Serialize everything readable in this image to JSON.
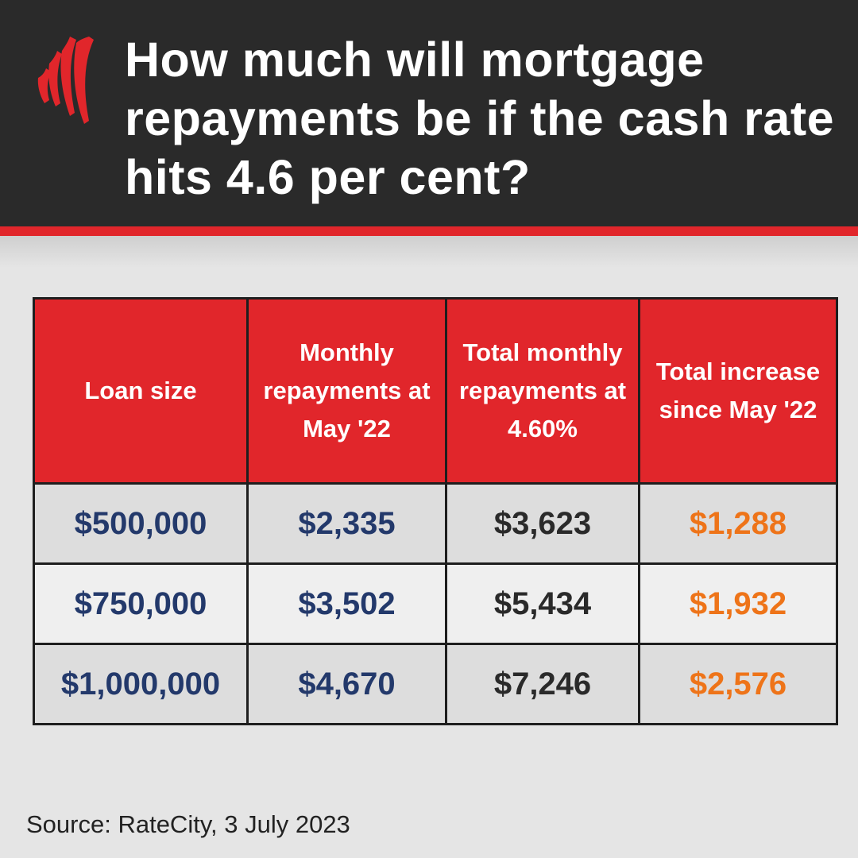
{
  "header": {
    "title": "How much will mortgage repayments be if the cash rate hits 4.6 per cent?",
    "brand_color": "#e1262b",
    "background_color": "#2a2a2a",
    "logo_icon": "sbs-logo-icon"
  },
  "chart_data": {
    "type": "table",
    "columns": [
      "Loan size",
      "Monthly repayments at May '22",
      "Total monthly repayments at 4.60%",
      "Total increase since May '22"
    ],
    "rows": [
      [
        "$500,000",
        "$2,335",
        "$3,623",
        "$1,288"
      ],
      [
        "$750,000",
        "$3,502",
        "$5,434",
        "$1,932"
      ],
      [
        "$1,000,000",
        "$4,670",
        "$7,246",
        "$2,576"
      ]
    ],
    "colors": {
      "header_bg": "#e1262b",
      "loan_and_may22_text": "#23396b",
      "total_text": "#2a2a2a",
      "increase_text": "#ee7419"
    }
  },
  "footer": {
    "source": "Source: RateCity, 3 July 2023"
  }
}
